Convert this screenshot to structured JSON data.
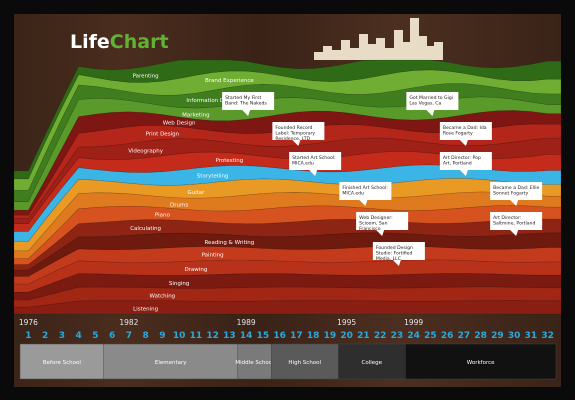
{
  "title": {
    "part1": "Life",
    "part2": "Chart"
  },
  "colors": {
    "background": "#3e261a",
    "sky": "#3bb4e6",
    "green": "#5a9a2a",
    "title_white": "#ffffff",
    "title_green": "#5fb332",
    "age_number": "#2aa9e0"
  },
  "chart_data": {
    "type": "area",
    "title": "LifeChart",
    "x_label": "",
    "y_label": "",
    "x": [
      1,
      2,
      3,
      4,
      5,
      6,
      7,
      8,
      9,
      10,
      11,
      12,
      13,
      14,
      15,
      16,
      17,
      18,
      19,
      20,
      21,
      22,
      23,
      24,
      25,
      26,
      27,
      28,
      29,
      30,
      31,
      32
    ],
    "year_marks": [
      {
        "age": 1,
        "year": "1976"
      },
      {
        "age": 7,
        "year": "1982"
      },
      {
        "age": 14,
        "year": "1989"
      },
      {
        "age": 20,
        "year": "1995"
      },
      {
        "age": 24,
        "year": "1999"
      }
    ],
    "stages": [
      {
        "label": "Before School",
        "from": 1,
        "to": 5
      },
      {
        "label": "Elementary",
        "from": 6,
        "to": 13
      },
      {
        "label": "Middle School",
        "from": 14,
        "to": 15
      },
      {
        "label": "High School",
        "from": 16,
        "to": 19
      },
      {
        "label": "College",
        "from": 20,
        "to": 23
      },
      {
        "label": "Workforce",
        "from": 24,
        "to": 32
      }
    ],
    "series": [
      {
        "name": "Listening",
        "color": "#8a1e12"
      },
      {
        "name": "Watching",
        "color": "#a12714"
      },
      {
        "name": "Singing",
        "color": "#7a1a10"
      },
      {
        "name": "Drawing",
        "color": "#b8321a"
      },
      {
        "name": "Painting",
        "color": "#c43a1c"
      },
      {
        "name": "Reading & Writing",
        "color": "#6e1a0e"
      },
      {
        "name": "Calculating",
        "color": "#8e2414"
      },
      {
        "name": "Piano",
        "color": "#d6521e"
      },
      {
        "name": "Drums",
        "color": "#e07a1f"
      },
      {
        "name": "Guitar",
        "color": "#e89a25"
      },
      {
        "name": "Storytelling",
        "color": "#3bb4e6"
      },
      {
        "name": "Protesting",
        "color": "#c42b1a"
      },
      {
        "name": "Videography",
        "color": "#9e2016"
      },
      {
        "name": "Print Design",
        "color": "#b5261a"
      },
      {
        "name": "Web Design",
        "color": "#7e1713"
      },
      {
        "name": "Marketing",
        "color": "#5a9a2a"
      },
      {
        "name": "Information Design",
        "color": "#3f7d1f"
      },
      {
        "name": "Brand Experience",
        "color": "#6fae32"
      },
      {
        "name": "Parenting",
        "color": "#2f6a16"
      }
    ],
    "annotations": [
      {
        "age": 14,
        "text": "Started My First Band: The Nakeds"
      },
      {
        "age": 17,
        "text": "Founded Record Label: Temporary Residence, LTD"
      },
      {
        "age": 18,
        "text": "Started Art School: MICA.edu"
      },
      {
        "age": 21,
        "text": "Finished Art School: MICA.edu"
      },
      {
        "age": 22,
        "text": "Web Designer: Scioom, San Francisco"
      },
      {
        "age": 23,
        "text": "Founded Design Studio: Fortified Media, LLC"
      },
      {
        "age": 25,
        "text": "Got Married to Gigi Las Vegas, Ca"
      },
      {
        "age": 27,
        "text": "Became a Dad: Ida Rose Fogarty"
      },
      {
        "age": 27,
        "text": "Art Director: Pop Art, Portland"
      },
      {
        "age": 30,
        "text": "Became a Dad: Ellie Sonnet Fogarty"
      },
      {
        "age": 30,
        "text": "Art Director: Saltmine, Portland"
      }
    ]
  }
}
